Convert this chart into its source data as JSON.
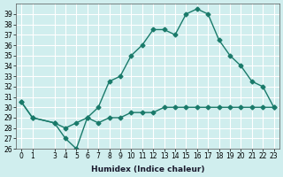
{
  "xlabel": "Humidex (Indice chaleur)",
  "x_ticks": [
    0,
    1,
    3,
    4,
    5,
    6,
    7,
    8,
    9,
    10,
    11,
    12,
    13,
    14,
    15,
    16,
    17,
    18,
    19,
    20,
    21,
    22,
    23
  ],
  "line1_x": [
    0,
    1,
    3,
    4,
    5,
    6,
    7,
    8,
    9,
    10,
    11,
    12,
    13,
    14,
    15,
    16,
    17,
    18,
    19,
    20,
    21,
    22,
    23
  ],
  "line1_y": [
    30.5,
    29.0,
    28.5,
    27.0,
    26.0,
    29.0,
    30.0,
    32.5,
    33.0,
    35.0,
    36.0,
    37.5,
    37.5,
    37.0,
    39.0,
    39.5,
    39.0,
    36.5,
    35.0,
    34.0,
    32.5,
    32.0,
    30.0
  ],
  "line2_x": [
    0,
    1,
    3,
    4,
    5,
    6,
    7,
    8,
    9,
    10,
    11,
    12,
    13,
    14,
    15,
    16,
    17,
    18,
    19,
    20,
    21,
    22,
    23
  ],
  "line2_y": [
    30.5,
    29.0,
    28.5,
    28.0,
    28.5,
    29.0,
    28.5,
    29.0,
    29.0,
    29.5,
    29.5,
    29.5,
    30.0,
    30.0,
    30.0,
    30.0,
    30.0,
    30.0,
    30.0,
    30.0,
    30.0,
    30.0,
    30.0
  ],
  "line_color": "#1a7a6a",
  "bg_color": "#d0eeee",
  "grid_color": "#ffffff",
  "ylim": [
    26,
    40
  ],
  "yticks": [
    26,
    27,
    28,
    29,
    30,
    31,
    32,
    33,
    34,
    35,
    36,
    37,
    38,
    39
  ],
  "marker": "D",
  "markersize": 2.5,
  "linewidth": 1.0
}
